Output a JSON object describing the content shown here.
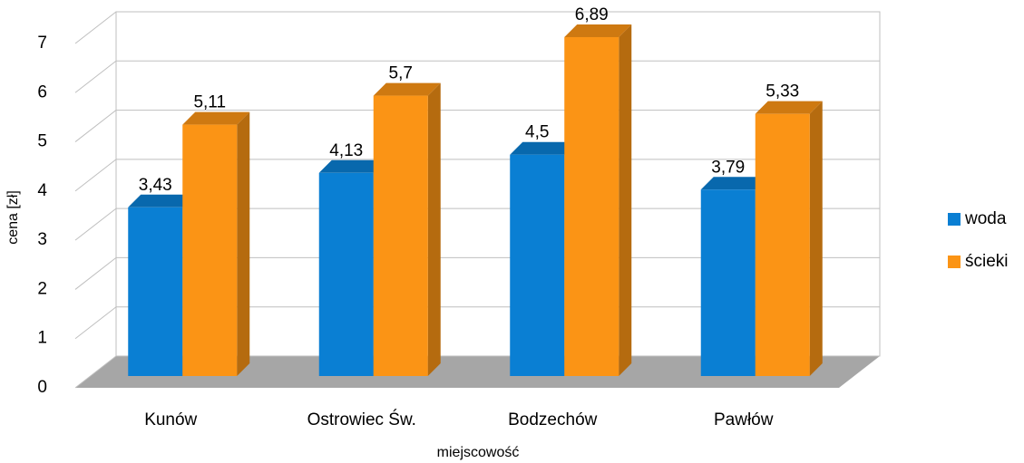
{
  "chart_data": {
    "type": "bar3d",
    "categories": [
      "Kunów",
      "Ostrowiec Św.",
      "Bodzechów",
      "Pawłów"
    ],
    "series": [
      {
        "name": "woda",
        "color": "#0a7fd3",
        "values": [
          3.43,
          4.13,
          4.5,
          3.79
        ],
        "value_labels": [
          "3,43",
          "4,13",
          "4,5",
          "3,79"
        ]
      },
      {
        "name": "ścieki",
        "color": "#fb9415",
        "values": [
          5.11,
          5.7,
          6.89,
          5.33
        ],
        "value_labels": [
          "5,11",
          "5,7",
          "6,89",
          "5,33"
        ]
      }
    ],
    "ylim": [
      0,
      7
    ],
    "yticks": [
      0,
      1,
      2,
      3,
      4,
      5,
      6,
      7
    ],
    "grid": true,
    "ylabel": "cena [zł]",
    "xlabel": "miejscowość",
    "legend": "right"
  }
}
